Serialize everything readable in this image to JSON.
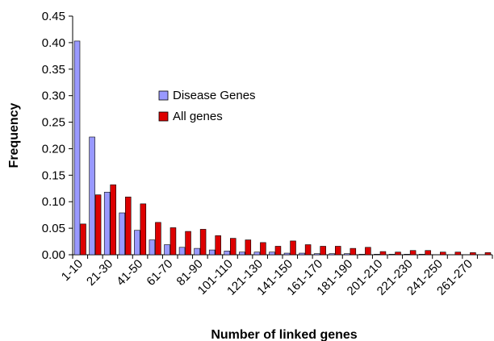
{
  "chart_data": {
    "type": "bar",
    "title": "",
    "xlabel": "Number of linked genes",
    "ylabel": "Frequency",
    "ylim": [
      0,
      0.45
    ],
    "yticks": [
      "0.00",
      "0.05",
      "0.10",
      "0.15",
      "0.20",
      "0.25",
      "0.30",
      "0.35",
      "0.40",
      "0.45"
    ],
    "grid": false,
    "legend_position": "upper-middle",
    "categories": [
      "1-10",
      "11-20",
      "21-30",
      "31-40",
      "41-50",
      "51-60",
      "61-70",
      "71-80",
      "81-90",
      "91-100",
      "101-110",
      "111-120",
      "121-130",
      "131-140",
      "141-150",
      "151-160",
      "161-170",
      "171-180",
      "181-190",
      "191-200",
      "201-210",
      "211-220",
      "221-230",
      "231-240",
      "241-250",
      "251-260",
      "261-270",
      "271-280"
    ],
    "tick_labels": [
      "1-10",
      "",
      "21-30",
      "",
      "41-50",
      "",
      "61-70",
      "",
      "81-90",
      "",
      "101-110",
      "",
      "121-130",
      "",
      "141-150",
      "",
      "161-170",
      "",
      "181-190",
      "",
      "201-210",
      "",
      "221-230",
      "",
      "241-250",
      "",
      "261-270",
      ""
    ],
    "series": [
      {
        "name": "Disease Genes",
        "color": "#9999ff",
        "values": [
          0.403,
          0.222,
          0.118,
          0.079,
          0.046,
          0.028,
          0.019,
          0.014,
          0.012,
          0.009,
          0.007,
          0.005,
          0.005,
          0.005,
          0.003,
          0.003,
          0.002,
          0.002,
          0.002,
          0.001,
          0.001,
          0.001,
          0.001,
          0.001,
          0.0,
          0.0,
          0.0,
          0.0
        ]
      },
      {
        "name": "All genes",
        "color": "#dd0000",
        "values": [
          0.058,
          0.113,
          0.132,
          0.109,
          0.096,
          0.061,
          0.051,
          0.044,
          0.048,
          0.036,
          0.031,
          0.028,
          0.023,
          0.016,
          0.026,
          0.019,
          0.016,
          0.016,
          0.012,
          0.014,
          0.006,
          0.005,
          0.008,
          0.008,
          0.005,
          0.005,
          0.004,
          0.004
        ]
      }
    ]
  }
}
